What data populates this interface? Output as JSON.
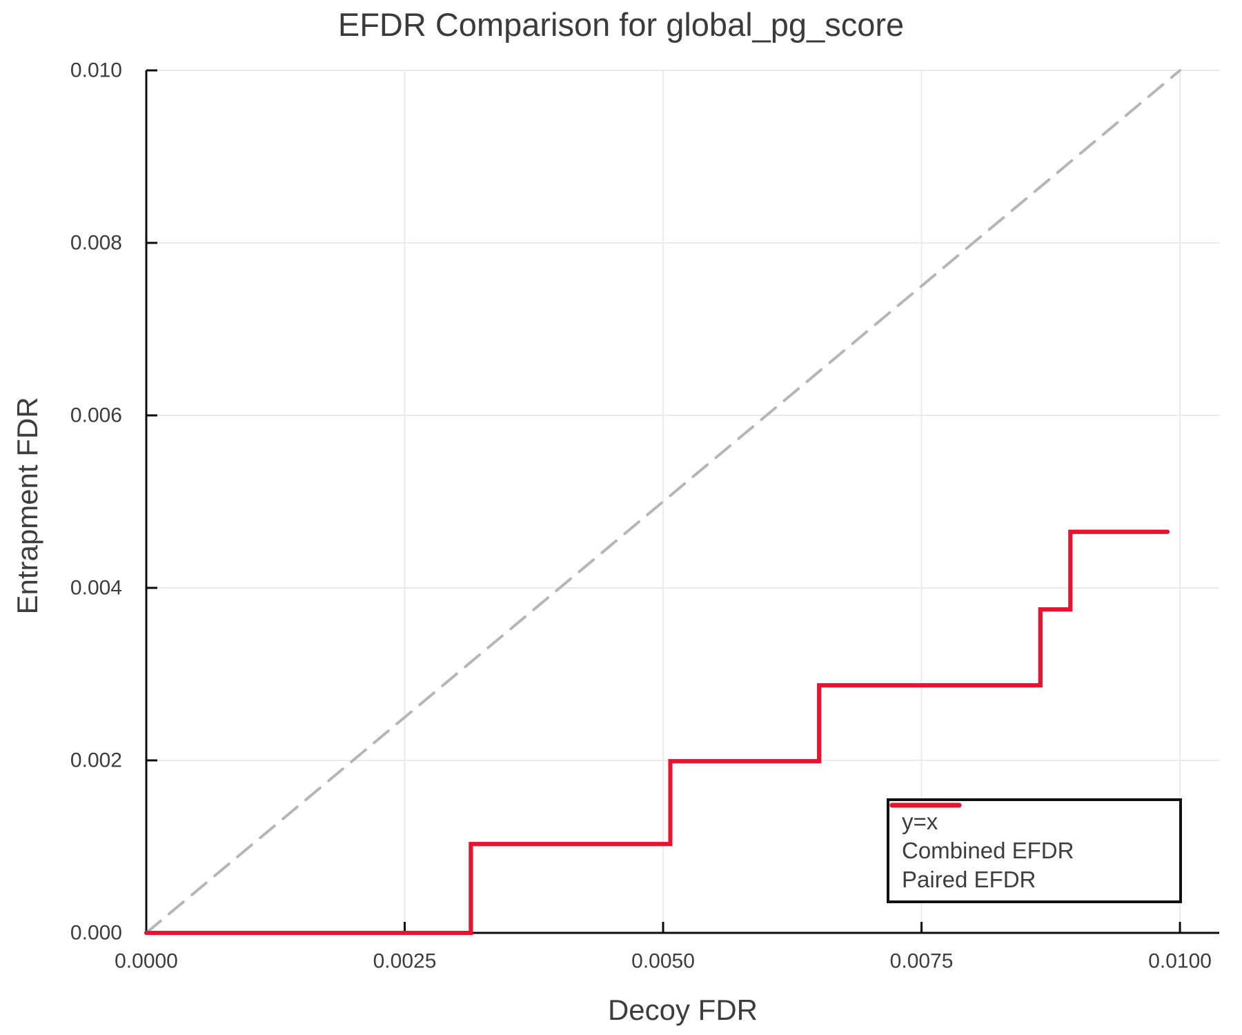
{
  "chart_data": {
    "type": "line",
    "title": "EFDR Comparison for global_pg_score",
    "xlabel": "Decoy FDR",
    "ylabel": "Entrapment FDR",
    "xlim": [
      0,
      0.01038
    ],
    "ylim": [
      0,
      0.01
    ],
    "grid": true,
    "legend_position": "bottom-right",
    "xticks": {
      "values": [
        0,
        0.0025,
        0.005,
        0.0075,
        0.01
      ],
      "labels": [
        "0.0000",
        "0.0025",
        "0.0050",
        "0.0075",
        "0.0100"
      ]
    },
    "yticks": {
      "values": [
        0,
        0.002,
        0.004,
        0.006,
        0.008,
        0.01
      ],
      "labels": [
        "0.000",
        "0.002",
        "0.004",
        "0.006",
        "0.008",
        "0.010"
      ]
    },
    "colors": {
      "background": "#ffffff",
      "text": "#3d3d3d",
      "grid": "#ebebeb",
      "axis": "#0c0c0c",
      "reference": "#b6b6b6",
      "combined": "#2424cf",
      "paired": "#e8142e"
    },
    "series": [
      {
        "name": "y=x",
        "color": "#b6b6b6",
        "style": "dashed",
        "width": 4,
        "step": false,
        "points": [
          [
            0,
            0
          ],
          [
            0.01,
            0.01
          ]
        ]
      },
      {
        "name": "Combined EFDR",
        "color": "#2424cf",
        "style": "solid",
        "width": 6,
        "step": "post",
        "points": [
          [
            0,
            0
          ],
          [
            0.00314,
            0.00103
          ],
          [
            0.00507,
            0.00199
          ],
          [
            0.00651,
            0.00287
          ],
          [
            0.00865,
            0.00375
          ],
          [
            0.00894,
            0.00465
          ],
          [
            0.00988,
            0.00465
          ]
        ]
      },
      {
        "name": "Paired EFDR",
        "color": "#e8142e",
        "style": "solid",
        "width": 6,
        "step": "post",
        "points": [
          [
            0,
            0
          ],
          [
            0.00314,
            0.00103
          ],
          [
            0.00507,
            0.00199
          ],
          [
            0.00651,
            0.00287
          ],
          [
            0.00865,
            0.00375
          ],
          [
            0.00894,
            0.00465
          ],
          [
            0.00988,
            0.00465
          ]
        ]
      }
    ]
  }
}
